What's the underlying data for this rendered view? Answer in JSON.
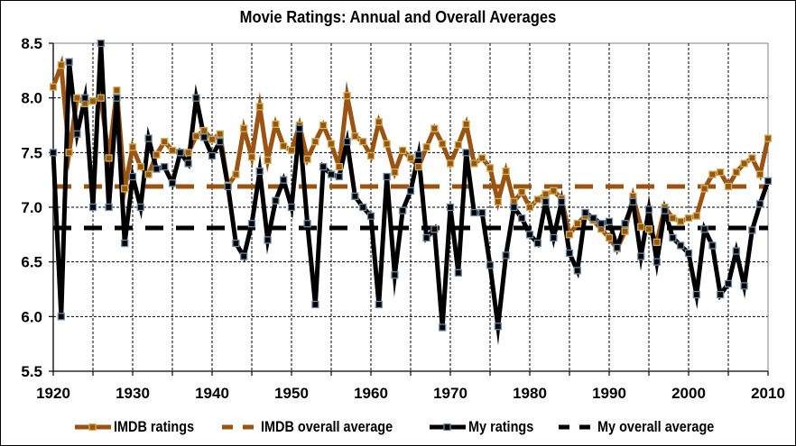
{
  "chart_data": {
    "type": "line",
    "title": "Movie Ratings: Annual and Overall Averages",
    "xlabel": "",
    "ylabel": "",
    "xlim": [
      1920,
      2010
    ],
    "ylim": [
      5.5,
      8.5
    ],
    "x_ticks": [
      "1920",
      "1930",
      "1940",
      "1950",
      "1960",
      "1970",
      "1980",
      "1990",
      "2000",
      "2010"
    ],
    "x_tick_values": [
      1920,
      1930,
      1940,
      1950,
      1960,
      1970,
      1980,
      1990,
      2000,
      2010
    ],
    "x_minor_gridlines": [
      1925,
      1935,
      1945,
      1955,
      1965,
      1975,
      1985,
      1995,
      2005
    ],
    "y_ticks": [
      "5.5",
      "6.0",
      "6.5",
      "7.0",
      "7.5",
      "8.0",
      "8.5"
    ],
    "y_tick_values": [
      5.5,
      6.0,
      6.5,
      7.0,
      7.5,
      8.0,
      8.5
    ],
    "grid": true,
    "legend_position": "bottom",
    "x": [
      1920,
      1921,
      1922,
      1923,
      1924,
      1925,
      1926,
      1927,
      1928,
      1929,
      1930,
      1931,
      1932,
      1933,
      1934,
      1935,
      1936,
      1937,
      1938,
      1939,
      1940,
      1941,
      1942,
      1943,
      1944,
      1945,
      1946,
      1947,
      1948,
      1949,
      1950,
      1951,
      1952,
      1953,
      1954,
      1955,
      1956,
      1957,
      1958,
      1959,
      1960,
      1961,
      1962,
      1963,
      1964,
      1965,
      1966,
      1967,
      1968,
      1969,
      1970,
      1971,
      1972,
      1973,
      1974,
      1975,
      1976,
      1977,
      1978,
      1979,
      1980,
      1981,
      1982,
      1983,
      1984,
      1985,
      1986,
      1987,
      1988,
      1989,
      1990,
      1991,
      1992,
      1993,
      1994,
      1995,
      1996,
      1997,
      1998,
      1999,
      2000,
      2001,
      2002,
      2003,
      2004,
      2005,
      2006,
      2007,
      2008,
      2009,
      2010
    ],
    "series": [
      {
        "name": "IMDB ratings",
        "color": "#9C5311",
        "marker_color": "#C9B45A",
        "style": "solid",
        "values": [
          8.1,
          8.3,
          7.5,
          8.0,
          7.95,
          7.97,
          8.0,
          7.45,
          8.07,
          7.17,
          7.55,
          7.37,
          7.3,
          7.48,
          7.6,
          7.52,
          7.5,
          7.5,
          7.65,
          7.7,
          7.62,
          7.67,
          7.2,
          7.3,
          7.72,
          7.46,
          7.92,
          7.43,
          7.76,
          7.56,
          7.52,
          7.75,
          7.44,
          7.6,
          7.75,
          7.58,
          7.37,
          8.02,
          7.65,
          7.6,
          7.47,
          7.78,
          7.58,
          7.32,
          7.52,
          7.45,
          7.37,
          7.55,
          7.72,
          7.58,
          7.4,
          7.57,
          7.76,
          7.4,
          7.45,
          7.36,
          7.05,
          7.33,
          7.05,
          7.14,
          7.0,
          7.07,
          7.12,
          7.15,
          7.08,
          6.75,
          6.85,
          6.92,
          6.88,
          6.8,
          6.72,
          6.62,
          6.78,
          7.1,
          6.82,
          6.8,
          6.68,
          7.0,
          6.9,
          6.87,
          6.9,
          6.92,
          7.17,
          7.3,
          7.32,
          7.19,
          7.32,
          7.4,
          7.45,
          7.3,
          7.63
        ]
      },
      {
        "name": "IMDB overall average",
        "color": "#9C5311",
        "style": "dashed",
        "values": [
          7.19
        ]
      },
      {
        "name": "My ratings",
        "color": "#000000",
        "marker_color": "#6B8CA8",
        "style": "solid",
        "values": [
          7.5,
          6.0,
          8.33,
          7.67,
          8.0,
          7.0,
          8.5,
          7.0,
          8.0,
          6.67,
          7.28,
          7.0,
          7.63,
          7.35,
          7.37,
          7.22,
          7.5,
          7.4,
          8.0,
          7.64,
          7.47,
          7.6,
          7.19,
          6.67,
          6.55,
          6.85,
          7.33,
          6.7,
          7.06,
          7.25,
          7.0,
          7.72,
          6.85,
          6.11,
          7.37,
          7.3,
          7.28,
          7.6,
          7.1,
          7.0,
          6.92,
          6.11,
          7.28,
          6.38,
          6.97,
          7.15,
          7.48,
          6.72,
          6.8,
          5.9,
          7.0,
          6.4,
          7.5,
          6.95,
          6.95,
          6.47,
          5.91,
          6.56,
          7.0,
          6.9,
          6.75,
          6.67,
          7.05,
          6.72,
          7.05,
          6.58,
          6.42,
          6.95,
          6.9,
          6.85,
          6.87,
          6.63,
          6.85,
          7.05,
          6.55,
          6.98,
          6.5,
          6.97,
          6.72,
          6.65,
          6.58,
          6.2,
          6.8,
          6.65,
          6.2,
          6.3,
          6.6,
          6.28,
          6.79,
          7.03,
          7.24
        ]
      },
      {
        "name": "My overall average",
        "color": "#000000",
        "style": "dashed",
        "values": [
          6.81
        ]
      }
    ]
  }
}
